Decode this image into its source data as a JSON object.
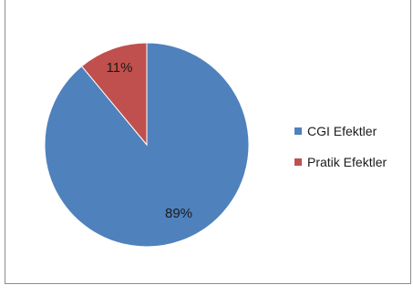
{
  "chart_data": {
    "type": "pie",
    "categories": [
      "CGI Efektler",
      "Pratik Efektler"
    ],
    "values": [
      89,
      11
    ],
    "labels": [
      "89%",
      "11%"
    ],
    "colors": [
      "#4f81bd",
      "#c0504d"
    ],
    "legend_position": "right",
    "title": ""
  }
}
